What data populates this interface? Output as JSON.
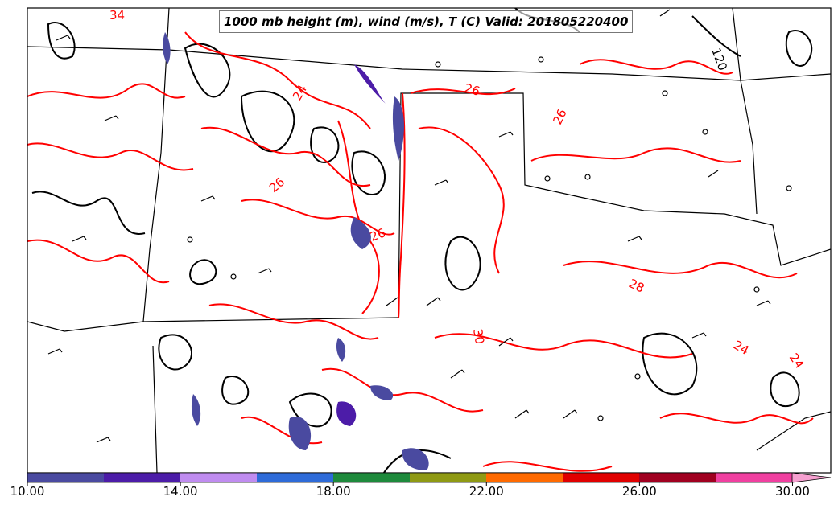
{
  "title": "1000 mb height (m), wind (m/s), T (C) Valid: 201805220400",
  "contour_labels": {
    "height": [
      "120"
    ],
    "temperature": [
      "34",
      "26",
      "24",
      "26",
      "26",
      "28",
      "30",
      "24",
      "24",
      "26"
    ]
  },
  "colorbar": {
    "min": 10.0,
    "max": 31.0,
    "tick_labels": [
      "10.00",
      "14.00",
      "18.00",
      "22.00",
      "26.00",
      "30.00"
    ],
    "tick_values": [
      10,
      14,
      18,
      22,
      26,
      30
    ],
    "colors": [
      "#4a4aa0",
      "#4c1ca8",
      "#c08cf0",
      "#2e6bd8",
      "#1e8a3c",
      "#8f9a14",
      "#ff6a00",
      "#e00000",
      "#a00020",
      "#f040a0"
    ],
    "extend_color": "#f6a0d0"
  },
  "colors": {
    "height_contour": "#000000",
    "temperature_contour": "#ff0000",
    "boundary": "#000000",
    "fill_low": "#4a4aa0",
    "fill_mid": "#4c1ca8"
  }
}
